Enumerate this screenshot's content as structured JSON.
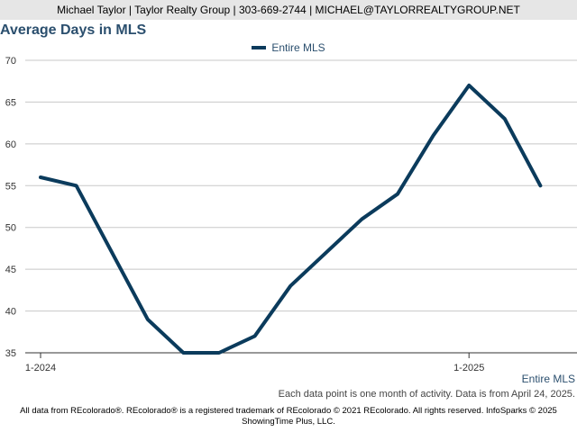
{
  "header": {
    "contact": "Michael Taylor | Taylor Realty Group | 303-669-2744 | MICHAEL@TAYLORREALTYGROUP.NET"
  },
  "colors": {
    "series": "#0b3b5c",
    "title": "#2b4f6e",
    "grid": "#c8c8c8",
    "header_bg": "#e6e6e6"
  },
  "chart_data": {
    "type": "line",
    "title": "Average Days in MLS",
    "xlabel": "",
    "ylabel": "",
    "x": [
      "2024-01",
      "2024-02",
      "2024-03",
      "2024-04",
      "2024-05",
      "2024-06",
      "2024-07",
      "2024-08",
      "2024-09",
      "2024-10",
      "2024-11",
      "2024-12",
      "2025-01",
      "2025-02",
      "2025-03"
    ],
    "x_tick_labels": [
      {
        "at": "2024-01",
        "label": "1-2024"
      },
      {
        "at": "2025-01",
        "label": "1-2025"
      }
    ],
    "series": [
      {
        "name": "Entire MLS",
        "values": [
          56,
          55,
          47,
          39,
          35,
          35,
          37,
          43,
          47,
          51,
          54,
          61,
          67,
          63,
          55
        ]
      }
    ],
    "ylim": [
      35,
      70
    ],
    "yticks": [
      35,
      40,
      45,
      50,
      55,
      60,
      65,
      70
    ],
    "grid": true,
    "legend": "top-center"
  },
  "area_label": "Entire MLS",
  "note": "Each data point is one month of activity. Data is from April 24, 2025.",
  "footer": {
    "line1": "All data from REcolorado®. REcolorado® is a registered trademark of REcolorado © 2021 REcolorado. All rights reserved. InfoSparks © 2025",
    "line2": "ShowingTime Plus, LLC."
  }
}
